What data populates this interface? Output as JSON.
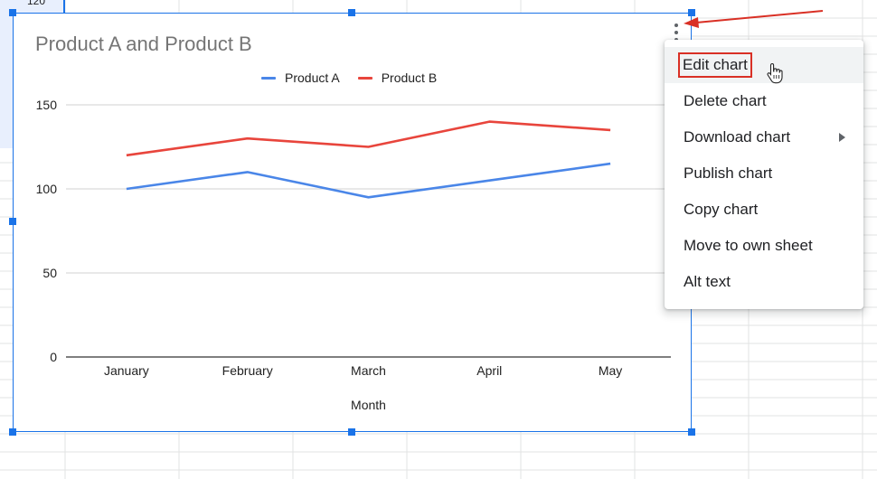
{
  "sheet": {
    "partial_cell_value": "120"
  },
  "chart": {
    "title": "Product A and Product B",
    "legend": [
      {
        "name": "Product A",
        "color": "#4a86e8"
      },
      {
        "name": "Product B",
        "color": "#e8453c"
      }
    ]
  },
  "chart_data": {
    "type": "line",
    "title": "Product A and Product B",
    "categories": [
      "January",
      "February",
      "March",
      "April",
      "May"
    ],
    "series": [
      {
        "name": "Product A",
        "values": [
          100,
          110,
          95,
          105,
          115
        ],
        "color": "#4a86e8"
      },
      {
        "name": "Product B",
        "values": [
          120,
          130,
          125,
          140,
          135
        ],
        "color": "#e8453c"
      }
    ],
    "xlabel": "Month",
    "ylabel": "",
    "ylim": [
      0,
      150
    ],
    "yticks": [
      0,
      50,
      100,
      150
    ],
    "grid": true,
    "legend_position": "top"
  },
  "menu": {
    "items": [
      {
        "label": "Edit chart",
        "highlighted": true
      },
      {
        "label": "Delete chart"
      },
      {
        "label": "Download chart",
        "submenu": true
      },
      {
        "label": "Publish chart"
      },
      {
        "label": "Copy chart"
      },
      {
        "label": "Move to own sheet"
      },
      {
        "label": "Alt text"
      }
    ]
  },
  "colors": {
    "selection": "#1a73e8",
    "annotation": "#d93025"
  }
}
